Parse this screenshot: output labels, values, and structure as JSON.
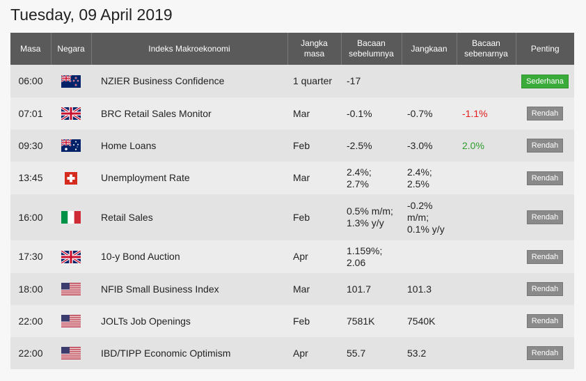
{
  "date_heading": "Tuesday, 09 April 2019",
  "columns": {
    "time": "Masa",
    "country": "Negara",
    "indicator": "Indeks Makroekonomi",
    "period": "Jangka masa",
    "previous": "Bacaan sebelumnya",
    "forecast": "Jangkaan",
    "actual": "Bacaan sebenarnya",
    "importance": "Penting"
  },
  "colors": {
    "actual_negative": "#e31b1b",
    "actual_positive": "#2e9b2e",
    "badge_low": "#8a8a8a",
    "badge_moderate": "#3aaa3a",
    "header_bg": "#5a5a5a"
  },
  "events": [
    {
      "time": "06:00",
      "flag": "new-zealand-flag-icon",
      "indicator": "NZIER Business Confidence",
      "period": "1 quarter",
      "previous": "-17",
      "forecast": "",
      "actual": "",
      "actual_trend": "",
      "importance": "Sederhana",
      "importance_level": "moderate"
    },
    {
      "time": "07:01",
      "flag": "uk-flag-icon",
      "indicator": "BRC Retail Sales Monitor",
      "period": "Mar",
      "previous": "-0.1%",
      "forecast": "-0.7%",
      "actual": "-1.1%",
      "actual_trend": "negative",
      "importance": "Rendah",
      "importance_level": "low"
    },
    {
      "time": "09:30",
      "flag": "australia-flag-icon",
      "indicator": "Home Loans",
      "period": "Feb",
      "previous": "-2.5%",
      "forecast": "-3.0%",
      "actual": "2.0%",
      "actual_trend": "positive",
      "importance": "Rendah",
      "importance_level": "low"
    },
    {
      "time": "13:45",
      "flag": "switzerland-flag-icon",
      "indicator": "Unemployment Rate",
      "period": "Mar",
      "previous": "2.4%; 2.7%",
      "forecast": "2.4%; 2.5%",
      "actual": "",
      "actual_trend": "",
      "importance": "Rendah",
      "importance_level": "low"
    },
    {
      "time": "16:00",
      "flag": "italy-flag-icon",
      "indicator": "Retail Sales",
      "period": "Feb",
      "previous": "0.5% m/m; 1.3% y/y",
      "forecast": "-0.2% m/m; 0.1% y/y",
      "actual": "",
      "actual_trend": "",
      "importance": "Rendah",
      "importance_level": "low"
    },
    {
      "time": "17:30",
      "flag": "uk-flag-icon",
      "indicator": "10-y Bond Auction",
      "period": "Apr",
      "previous": "1.159%; 2.06",
      "forecast": "",
      "actual": "",
      "actual_trend": "",
      "importance": "Rendah",
      "importance_level": "low"
    },
    {
      "time": "18:00",
      "flag": "us-flag-icon",
      "indicator": "NFIB Small Business Index",
      "period": "Mar",
      "previous": "101.7",
      "forecast": "101.3",
      "actual": "",
      "actual_trend": "",
      "importance": "Rendah",
      "importance_level": "low"
    },
    {
      "time": "22:00",
      "flag": "us-flag-icon",
      "indicator": "JOLTs Job Openings",
      "period": "Feb",
      "previous": "7581K",
      "forecast": "7540K",
      "actual": "",
      "actual_trend": "",
      "importance": "Rendah",
      "importance_level": "low"
    },
    {
      "time": "22:00",
      "flag": "us-flag-icon",
      "indicator": "IBD/TIPP Economic Optimism",
      "period": "Apr",
      "previous": "55.7",
      "forecast": "53.2",
      "actual": "",
      "actual_trend": "",
      "importance": "Rendah",
      "importance_level": "low"
    }
  ]
}
